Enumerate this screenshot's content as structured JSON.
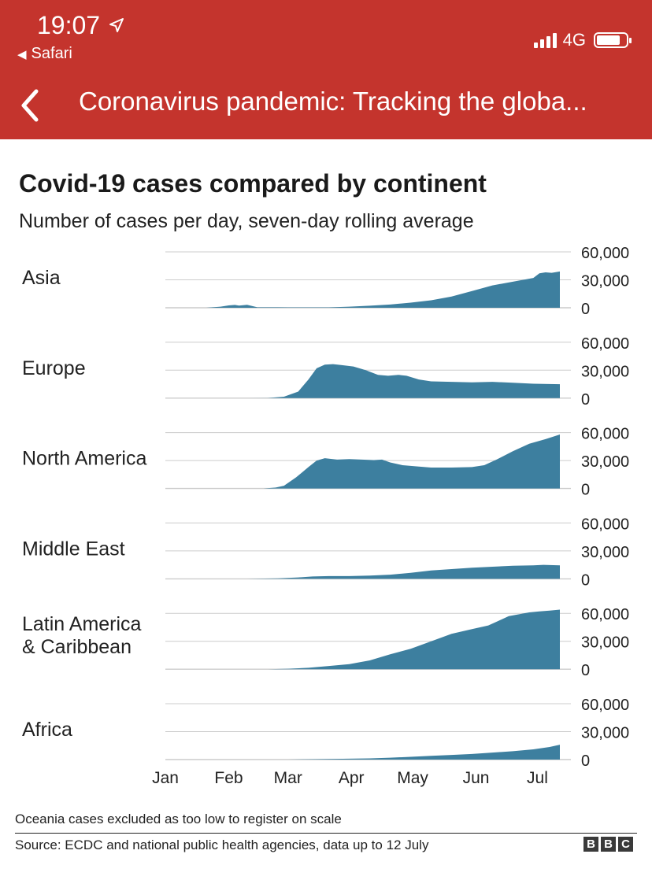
{
  "status_bar": {
    "time": "19:07",
    "back_app": "Safari",
    "network": "4G"
  },
  "nav": {
    "title": "Coronavirus pandemic: Tracking the globa..."
  },
  "colors": {
    "header_bg": "#c4342d",
    "area_fill": "#3d7f9f",
    "grid": "#cccccc"
  },
  "chart_data": {
    "type": "area",
    "title": "Covid-19 cases compared by continent",
    "subtitle": "Number of cases per day, seven-day rolling average",
    "xlabel": "",
    "ylabel": "",
    "x_months": [
      "Jan",
      "Feb",
      "Mar",
      "Apr",
      "May",
      "Jun",
      "Jul"
    ],
    "x_range_days": [
      0,
      193
    ],
    "ylim": [
      0,
      60000
    ],
    "y_ticks": [
      0,
      30000,
      60000
    ],
    "y_tick_labels": [
      "0",
      "30,000",
      "60,000"
    ],
    "series": [
      {
        "name": "Asia",
        "label_lines": [
          "Asia"
        ],
        "points": [
          [
            0,
            0
          ],
          [
            20,
            0
          ],
          [
            27,
            1200
          ],
          [
            31,
            2500
          ],
          [
            34,
            3000
          ],
          [
            36,
            2400
          ],
          [
            40,
            3200
          ],
          [
            45,
            500
          ],
          [
            55,
            500
          ],
          [
            60,
            400
          ],
          [
            80,
            400
          ],
          [
            90,
            1200
          ],
          [
            100,
            2200
          ],
          [
            110,
            3500
          ],
          [
            120,
            5500
          ],
          [
            130,
            8000
          ],
          [
            140,
            12000
          ],
          [
            150,
            18000
          ],
          [
            160,
            24000
          ],
          [
            170,
            28000
          ],
          [
            180,
            32000
          ],
          [
            183,
            37000
          ],
          [
            186,
            38000
          ],
          [
            189,
            37500
          ],
          [
            193,
            39000
          ]
        ]
      },
      {
        "name": "Europe",
        "label_lines": [
          "Europe"
        ],
        "points": [
          [
            0,
            0
          ],
          [
            40,
            0
          ],
          [
            50,
            200
          ],
          [
            58,
            1500
          ],
          [
            65,
            7000
          ],
          [
            70,
            20000
          ],
          [
            74,
            32000
          ],
          [
            78,
            36000
          ],
          [
            82,
            36500
          ],
          [
            86,
            35500
          ],
          [
            92,
            34000
          ],
          [
            98,
            30000
          ],
          [
            104,
            25000
          ],
          [
            109,
            24000
          ],
          [
            114,
            25000
          ],
          [
            118,
            24000
          ],
          [
            124,
            20000
          ],
          [
            130,
            18000
          ],
          [
            140,
            17500
          ],
          [
            150,
            17000
          ],
          [
            160,
            17500
          ],
          [
            170,
            16500
          ],
          [
            180,
            15500
          ],
          [
            193,
            15000
          ]
        ]
      },
      {
        "name": "North America",
        "label_lines": [
          "North America"
        ],
        "points": [
          [
            0,
            0
          ],
          [
            48,
            0
          ],
          [
            54,
            1000
          ],
          [
            58,
            3000
          ],
          [
            64,
            12000
          ],
          [
            70,
            23000
          ],
          [
            74,
            30000
          ],
          [
            78,
            32500
          ],
          [
            84,
            31000
          ],
          [
            90,
            31500
          ],
          [
            96,
            31000
          ],
          [
            102,
            30500
          ],
          [
            106,
            31000
          ],
          [
            110,
            28000
          ],
          [
            116,
            25000
          ],
          [
            124,
            23500
          ],
          [
            130,
            22500
          ],
          [
            140,
            22500
          ],
          [
            150,
            23000
          ],
          [
            156,
            25000
          ],
          [
            162,
            31000
          ],
          [
            170,
            40000
          ],
          [
            178,
            48000
          ],
          [
            186,
            53000
          ],
          [
            193,
            58000
          ]
        ]
      },
      {
        "name": "Middle East",
        "label_lines": [
          "Middle East"
        ],
        "points": [
          [
            0,
            0
          ],
          [
            40,
            0
          ],
          [
            55,
            500
          ],
          [
            65,
            1500
          ],
          [
            72,
            2500
          ],
          [
            80,
            3000
          ],
          [
            90,
            3000
          ],
          [
            100,
            3500
          ],
          [
            110,
            4500
          ],
          [
            120,
            6500
          ],
          [
            130,
            9000
          ],
          [
            140,
            10500
          ],
          [
            150,
            12000
          ],
          [
            160,
            13000
          ],
          [
            170,
            14000
          ],
          [
            180,
            14500
          ],
          [
            185,
            15000
          ],
          [
            193,
            14500
          ]
        ]
      },
      {
        "name": "Latin America & Caribbean",
        "label_lines": [
          "Latin America",
          "& Caribbean"
        ],
        "points": [
          [
            0,
            0
          ],
          [
            50,
            0
          ],
          [
            60,
            500
          ],
          [
            70,
            1500
          ],
          [
            80,
            3500
          ],
          [
            90,
            5500
          ],
          [
            100,
            9500
          ],
          [
            110,
            16000
          ],
          [
            120,
            22000
          ],
          [
            130,
            30000
          ],
          [
            140,
            38000
          ],
          [
            150,
            43000
          ],
          [
            158,
            47000
          ],
          [
            163,
            52000
          ],
          [
            168,
            57000
          ],
          [
            173,
            59000
          ],
          [
            178,
            61000
          ],
          [
            183,
            62000
          ],
          [
            188,
            63000
          ],
          [
            193,
            64000
          ]
        ]
      },
      {
        "name": "Africa",
        "label_lines": [
          "Africa"
        ],
        "points": [
          [
            0,
            0
          ],
          [
            60,
            0
          ],
          [
            70,
            300
          ],
          [
            80,
            600
          ],
          [
            90,
            900
          ],
          [
            100,
            1300
          ],
          [
            110,
            2000
          ],
          [
            120,
            3000
          ],
          [
            130,
            4000
          ],
          [
            140,
            5000
          ],
          [
            150,
            6000
          ],
          [
            160,
            7500
          ],
          [
            170,
            9000
          ],
          [
            180,
            11000
          ],
          [
            188,
            13500
          ],
          [
            193,
            16000
          ]
        ]
      }
    ],
    "note": "Oceania cases excluded as too low to register on scale",
    "source": "Source: ECDC and national public health agencies, data up to 12 July",
    "brand": [
      "B",
      "B",
      "C"
    ]
  }
}
